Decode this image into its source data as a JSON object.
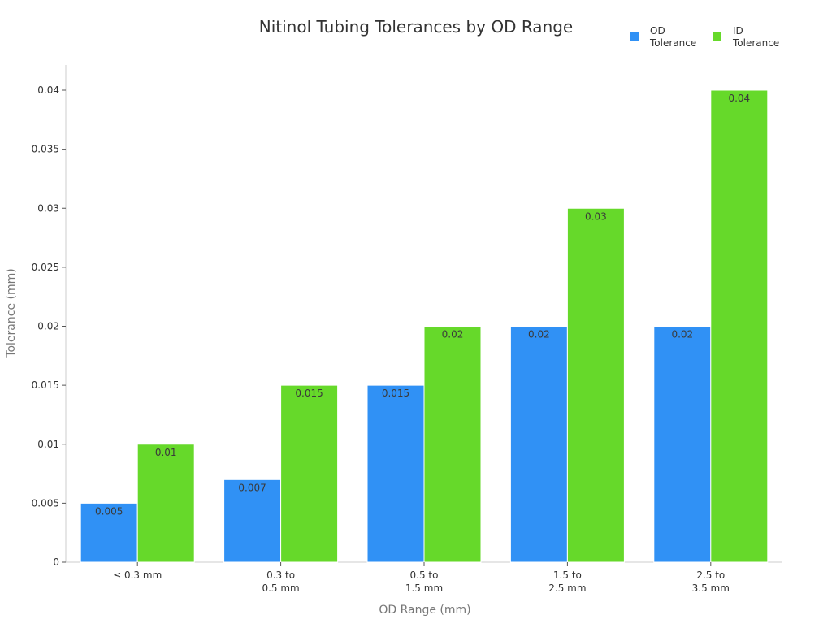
{
  "chart_data": {
    "type": "bar",
    "title": "Nitinol Tubing Tolerances by OD Range",
    "xlabel": "OD Range (mm)",
    "ylabel": "Tolerance (mm)",
    "ylim": [
      0,
      0.042
    ],
    "yticks": [
      "0",
      "0.005",
      "0.01",
      "0.015",
      "0.02",
      "0.025",
      "0.03",
      "0.035",
      "0.04"
    ],
    "categories": [
      [
        "≤ 0.3 mm"
      ],
      [
        "0.3 to",
        "0.5 mm"
      ],
      [
        "0.5 to",
        "1.5 mm"
      ],
      [
        "1.5 to",
        "2.5 mm"
      ],
      [
        "2.5 to",
        "3.5 mm"
      ]
    ],
    "series": [
      {
        "name": [
          "OD",
          "Tolerance"
        ],
        "color": "#3091f5",
        "values": [
          0.005,
          0.007,
          0.015,
          0.02,
          0.02
        ],
        "labels": [
          "0.005",
          "0.007",
          "0.015",
          "0.02",
          "0.02"
        ]
      },
      {
        "name": [
          "ID",
          "Tolerance"
        ],
        "color": "#66d92a",
        "values": [
          0.01,
          0.015,
          0.02,
          0.03,
          0.04
        ],
        "labels": [
          "0.01",
          "0.015",
          "0.02",
          "0.03",
          "0.04"
        ]
      }
    ],
    "legend": "top-right",
    "grid": false
  }
}
